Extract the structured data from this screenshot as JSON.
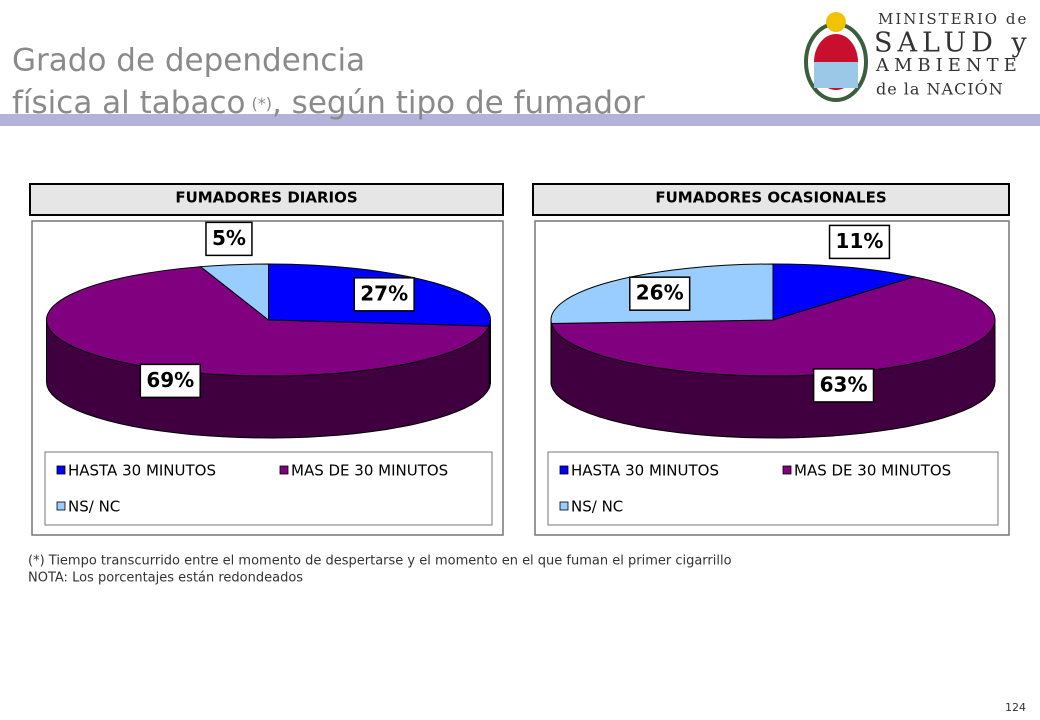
{
  "header": {
    "title_line1": "Grado de dependencia",
    "title_line2": "física al tabaco",
    "title_mark": "(*)",
    "title_line2_end": ", según tipo de fumador"
  },
  "logo": {
    "line1": "MINISTERIO de",
    "line2": "SALUD y",
    "line3": "AMBIENTE",
    "line4": "de la NACIÓN"
  },
  "chart_data": [
    {
      "type": "pie",
      "title": "FUMADORES DIARIOS",
      "categories": [
        "HASTA 30 MINUTOS",
        "MAS DE 30 MINUTOS",
        "NS/ NC"
      ],
      "values": [
        27,
        69,
        5
      ],
      "value_labels": [
        "27%",
        "69%",
        "5%"
      ],
      "colors": [
        "#0000ff",
        "#800080",
        "#99ccff"
      ],
      "legend": "bottom"
    },
    {
      "type": "pie",
      "title": "FUMADORES OCASIONALES",
      "categories": [
        "HASTA 30 MINUTOS",
        "MAS DE 30 MINUTOS",
        "NS/ NC"
      ],
      "values": [
        11,
        63,
        26
      ],
      "value_labels": [
        "11%",
        "63%",
        "26%"
      ],
      "colors": [
        "#0000ff",
        "#800080",
        "#99ccff"
      ],
      "legend": "bottom"
    }
  ],
  "notes": [
    "(*) Tiempo transcurrido entre el momento de despertarse y el momento en el que fuman el primer cigarrillo",
    "NOTA: Los porcentajes están redondeados"
  ],
  "page_number": "124"
}
